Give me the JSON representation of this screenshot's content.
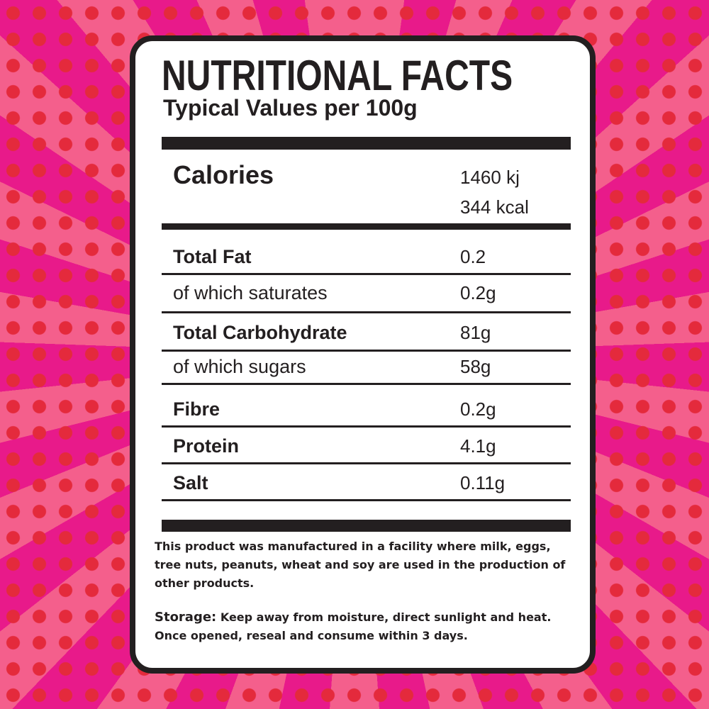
{
  "header": {
    "title": "NUTRITIONAL FACTS",
    "subtitle": "Typical Values per 100g"
  },
  "calories": {
    "label": "Calories",
    "values": [
      "1460 kj",
      "344 kcal"
    ]
  },
  "rows": [
    [
      "Total Fat",
      "0.2"
    ],
    [
      "of which saturates",
      "0.2g"
    ],
    [
      "Total Carbohydrate",
      "81g"
    ],
    [
      "of which sugars",
      "58g"
    ],
    [
      "Fibre",
      "0.2g"
    ],
    [
      "Protein",
      "4.1g"
    ],
    [
      "Salt",
      "0.11g"
    ]
  ],
  "note": "This product was manufactured in a facility where milk, eggs, tree nuts, peanuts, wheat and soy are used in the production of other products.",
  "storage": {
    "label": "Storage:",
    "text": "Keep away from moisture, direct sunlight and heat. Once opened, reseal and consume within 3 days."
  }
}
